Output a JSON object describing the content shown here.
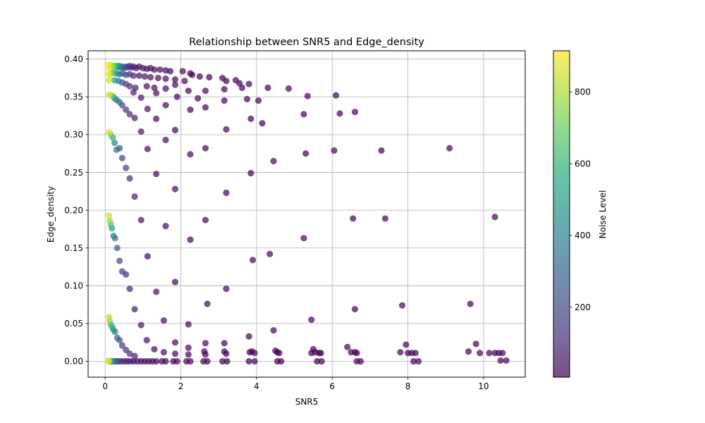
{
  "chart_data": {
    "type": "scatter",
    "title": "Relationship between SNR5 and Edge_density",
    "xlabel": "SNR5",
    "ylabel": "Edge_density",
    "xlim": [
      -0.45,
      11.1
    ],
    "ylim": [
      -0.021,
      0.411
    ],
    "xticks": [
      "0",
      "2",
      "4",
      "6",
      "8",
      "10"
    ],
    "yticks": [
      "0.00",
      "0.05",
      "0.10",
      "0.15",
      "0.20",
      "0.25",
      "0.30",
      "0.35",
      "0.40"
    ],
    "grid": true,
    "colorbar": {
      "label": "Noise Level",
      "range": [
        5,
        915
      ],
      "ticks": [
        "200",
        "400",
        "600",
        "800"
      ],
      "colormap": "viridis",
      "alpha": 0.7
    },
    "point_color_by": "Noise Level",
    "points": [
      {
        "x": 0.08,
        "y": 0.393,
        "c": 915
      },
      {
        "x": 0.1,
        "y": 0.388,
        "c": 880
      },
      {
        "x": 0.09,
        "y": 0.38,
        "c": 890
      },
      {
        "x": 0.1,
        "y": 0.372,
        "c": 860
      },
      {
        "x": 0.15,
        "y": 0.392,
        "c": 820
      },
      {
        "x": 0.18,
        "y": 0.39,
        "c": 780
      },
      {
        "x": 0.22,
        "y": 0.391,
        "c": 700
      },
      {
        "x": 0.26,
        "y": 0.39,
        "c": 620
      },
      {
        "x": 0.3,
        "y": 0.391,
        "c": 520
      },
      {
        "x": 0.34,
        "y": 0.389,
        "c": 460
      },
      {
        "x": 0.38,
        "y": 0.391,
        "c": 380
      },
      {
        "x": 0.42,
        "y": 0.389,
        "c": 320
      },
      {
        "x": 0.46,
        "y": 0.39,
        "c": 260
      },
      {
        "x": 0.5,
        "y": 0.388,
        "c": 210
      },
      {
        "x": 0.55,
        "y": 0.39,
        "c": 170
      },
      {
        "x": 0.6,
        "y": 0.389,
        "c": 140
      },
      {
        "x": 0.65,
        "y": 0.391,
        "c": 110
      },
      {
        "x": 0.7,
        "y": 0.389,
        "c": 90
      },
      {
        "x": 0.75,
        "y": 0.39,
        "c": 80
      },
      {
        "x": 0.82,
        "y": 0.388,
        "c": 65
      },
      {
        "x": 0.9,
        "y": 0.39,
        "c": 55
      },
      {
        "x": 1.0,
        "y": 0.388,
        "c": 45
      },
      {
        "x": 1.1,
        "y": 0.387,
        "c": 40
      },
      {
        "x": 1.2,
        "y": 0.388,
        "c": 35
      },
      {
        "x": 1.3,
        "y": 0.386,
        "c": 30
      },
      {
        "x": 1.45,
        "y": 0.386,
        "c": 25
      },
      {
        "x": 1.6,
        "y": 0.385,
        "c": 20
      },
      {
        "x": 1.72,
        "y": 0.384,
        "c": 18
      },
      {
        "x": 2.05,
        "y": 0.384,
        "c": 15
      },
      {
        "x": 2.25,
        "y": 0.381,
        "c": 14
      },
      {
        "x": 2.3,
        "y": 0.379,
        "c": 13
      },
      {
        "x": 2.5,
        "y": 0.377,
        "c": 12
      },
      {
        "x": 2.75,
        "y": 0.376,
        "c": 12
      },
      {
        "x": 3.1,
        "y": 0.375,
        "c": 11
      },
      {
        "x": 3.2,
        "y": 0.371,
        "c": 11
      },
      {
        "x": 3.45,
        "y": 0.372,
        "c": 10
      },
      {
        "x": 3.55,
        "y": 0.368,
        "c": 10
      },
      {
        "x": 3.8,
        "y": 0.367,
        "c": 10
      },
      {
        "x": 3.62,
        "y": 0.362,
        "c": 10
      },
      {
        "x": 4.3,
        "y": 0.362,
        "c": 9
      },
      {
        "x": 4.85,
        "y": 0.361,
        "c": 9
      },
      {
        "x": 0.15,
        "y": 0.38,
        "c": 800
      },
      {
        "x": 0.22,
        "y": 0.382,
        "c": 600
      },
      {
        "x": 0.3,
        "y": 0.381,
        "c": 420
      },
      {
        "x": 0.38,
        "y": 0.38,
        "c": 320
      },
      {
        "x": 0.46,
        "y": 0.381,
        "c": 240
      },
      {
        "x": 0.55,
        "y": 0.379,
        "c": 180
      },
      {
        "x": 0.65,
        "y": 0.38,
        "c": 130
      },
      {
        "x": 0.75,
        "y": 0.378,
        "c": 95
      },
      {
        "x": 0.9,
        "y": 0.378,
        "c": 70
      },
      {
        "x": 1.05,
        "y": 0.377,
        "c": 55
      },
      {
        "x": 1.2,
        "y": 0.376,
        "c": 40
      },
      {
        "x": 1.4,
        "y": 0.375,
        "c": 30
      },
      {
        "x": 1.6,
        "y": 0.374,
        "c": 25
      },
      {
        "x": 1.85,
        "y": 0.373,
        "c": 20
      },
      {
        "x": 2.1,
        "y": 0.371,
        "c": 16
      },
      {
        "x": 0.25,
        "y": 0.372,
        "c": 500
      },
      {
        "x": 0.35,
        "y": 0.371,
        "c": 340
      },
      {
        "x": 0.45,
        "y": 0.369,
        "c": 230
      },
      {
        "x": 0.55,
        "y": 0.367,
        "c": 160
      },
      {
        "x": 0.65,
        "y": 0.364,
        "c": 110
      },
      {
        "x": 0.8,
        "y": 0.362,
        "c": 75
      },
      {
        "x": 1.1,
        "y": 0.364,
        "c": 45
      },
      {
        "x": 1.3,
        "y": 0.362,
        "c": 30
      },
      {
        "x": 1.6,
        "y": 0.361,
        "c": 20
      },
      {
        "x": 1.85,
        "y": 0.366,
        "c": 18
      },
      {
        "x": 2.2,
        "y": 0.358,
        "c": 14
      },
      {
        "x": 2.65,
        "y": 0.358,
        "c": 12
      },
      {
        "x": 3.15,
        "y": 0.36,
        "c": 11
      },
      {
        "x": 0.75,
        "y": 0.356,
        "c": 70
      },
      {
        "x": 0.95,
        "y": 0.349,
        "c": 50
      },
      {
        "x": 1.35,
        "y": 0.355,
        "c": 30
      },
      {
        "x": 1.9,
        "y": 0.35,
        "c": 18
      },
      {
        "x": 2.45,
        "y": 0.348,
        "c": 13
      },
      {
        "x": 3.15,
        "y": 0.345,
        "c": 11
      },
      {
        "x": 3.75,
        "y": 0.347,
        "c": 10
      },
      {
        "x": 4.05,
        "y": 0.345,
        "c": 9
      },
      {
        "x": 5.35,
        "y": 0.351,
        "c": 8
      },
      {
        "x": 6.1,
        "y": 0.352,
        "c": 8
      },
      {
        "x": 0.1,
        "y": 0.353,
        "c": 870
      },
      {
        "x": 0.15,
        "y": 0.352,
        "c": 760
      },
      {
        "x": 0.2,
        "y": 0.351,
        "c": 620
      },
      {
        "x": 0.25,
        "y": 0.348,
        "c": 480
      },
      {
        "x": 0.3,
        "y": 0.346,
        "c": 370
      },
      {
        "x": 0.38,
        "y": 0.343,
        "c": 280
      },
      {
        "x": 0.45,
        "y": 0.339,
        "c": 210
      },
      {
        "x": 0.55,
        "y": 0.333,
        "c": 150
      },
      {
        "x": 0.65,
        "y": 0.327,
        "c": 100
      },
      {
        "x": 0.78,
        "y": 0.322,
        "c": 75
      },
      {
        "x": 1.12,
        "y": 0.334,
        "c": 45
      },
      {
        "x": 1.35,
        "y": 0.321,
        "c": 30
      },
      {
        "x": 1.6,
        "y": 0.339,
        "c": 22
      },
      {
        "x": 2.25,
        "y": 0.333,
        "c": 14
      },
      {
        "x": 2.65,
        "y": 0.336,
        "c": 12
      },
      {
        "x": 3.85,
        "y": 0.321,
        "c": 10
      },
      {
        "x": 4.15,
        "y": 0.315,
        "c": 9
      },
      {
        "x": 5.25,
        "y": 0.327,
        "c": 8
      },
      {
        "x": 6.2,
        "y": 0.328,
        "c": 8
      },
      {
        "x": 6.6,
        "y": 0.33,
        "c": 8
      },
      {
        "x": 0.1,
        "y": 0.303,
        "c": 860
      },
      {
        "x": 0.15,
        "y": 0.3,
        "c": 720
      },
      {
        "x": 0.2,
        "y": 0.296,
        "c": 560
      },
      {
        "x": 0.25,
        "y": 0.289,
        "c": 420
      },
      {
        "x": 0.3,
        "y": 0.28,
        "c": 320
      },
      {
        "x": 0.38,
        "y": 0.282,
        "c": 250
      },
      {
        "x": 0.45,
        "y": 0.269,
        "c": 190
      },
      {
        "x": 0.55,
        "y": 0.256,
        "c": 140
      },
      {
        "x": 0.65,
        "y": 0.242,
        "c": 100
      },
      {
        "x": 0.78,
        "y": 0.218,
        "c": 70
      },
      {
        "x": 0.95,
        "y": 0.304,
        "c": 50
      },
      {
        "x": 1.12,
        "y": 0.281,
        "c": 40
      },
      {
        "x": 1.35,
        "y": 0.248,
        "c": 30
      },
      {
        "x": 1.6,
        "y": 0.293,
        "c": 22
      },
      {
        "x": 1.85,
        "y": 0.306,
        "c": 18
      },
      {
        "x": 1.85,
        "y": 0.228,
        "c": 18
      },
      {
        "x": 2.25,
        "y": 0.274,
        "c": 14
      },
      {
        "x": 2.65,
        "y": 0.282,
        "c": 12
      },
      {
        "x": 3.2,
        "y": 0.307,
        "c": 11
      },
      {
        "x": 3.2,
        "y": 0.223,
        "c": 11
      },
      {
        "x": 3.85,
        "y": 0.249,
        "c": 10
      },
      {
        "x": 4.45,
        "y": 0.265,
        "c": 9
      },
      {
        "x": 5.3,
        "y": 0.275,
        "c": 8
      },
      {
        "x": 6.05,
        "y": 0.279,
        "c": 8
      },
      {
        "x": 7.3,
        "y": 0.279,
        "c": 7
      },
      {
        "x": 9.1,
        "y": 0.282,
        "c": 7
      },
      {
        "x": 0.1,
        "y": 0.193,
        "c": 850
      },
      {
        "x": 0.12,
        "y": 0.186,
        "c": 760
      },
      {
        "x": 0.15,
        "y": 0.181,
        "c": 640
      },
      {
        "x": 0.18,
        "y": 0.176,
        "c": 520
      },
      {
        "x": 0.22,
        "y": 0.166,
        "c": 400
      },
      {
        "x": 0.26,
        "y": 0.163,
        "c": 320
      },
      {
        "x": 0.32,
        "y": 0.15,
        "c": 260
      },
      {
        "x": 0.38,
        "y": 0.133,
        "c": 200
      },
      {
        "x": 0.45,
        "y": 0.119,
        "c": 160
      },
      {
        "x": 0.55,
        "y": 0.115,
        "c": 120
      },
      {
        "x": 0.65,
        "y": 0.096,
        "c": 90
      },
      {
        "x": 0.78,
        "y": 0.069,
        "c": 70
      },
      {
        "x": 0.95,
        "y": 0.187,
        "c": 50
      },
      {
        "x": 1.12,
        "y": 0.139,
        "c": 40
      },
      {
        "x": 1.35,
        "y": 0.092,
        "c": 30
      },
      {
        "x": 1.6,
        "y": 0.179,
        "c": 22
      },
      {
        "x": 1.85,
        "y": 0.105,
        "c": 18
      },
      {
        "x": 2.25,
        "y": 0.161,
        "c": 14
      },
      {
        "x": 2.65,
        "y": 0.187,
        "c": 12
      },
      {
        "x": 2.7,
        "y": 0.076,
        "c": 12
      },
      {
        "x": 3.2,
        "y": 0.096,
        "c": 11
      },
      {
        "x": 3.9,
        "y": 0.134,
        "c": 10
      },
      {
        "x": 4.35,
        "y": 0.142,
        "c": 9
      },
      {
        "x": 5.25,
        "y": 0.163,
        "c": 8
      },
      {
        "x": 6.55,
        "y": 0.189,
        "c": 8
      },
      {
        "x": 6.6,
        "y": 0.069,
        "c": 8
      },
      {
        "x": 7.4,
        "y": 0.189,
        "c": 7
      },
      {
        "x": 7.85,
        "y": 0.074,
        "c": 7
      },
      {
        "x": 9.65,
        "y": 0.076,
        "c": 6
      },
      {
        "x": 10.3,
        "y": 0.191,
        "c": 6
      },
      {
        "x": 0.1,
        "y": 0.059,
        "c": 830
      },
      {
        "x": 0.12,
        "y": 0.054,
        "c": 760
      },
      {
        "x": 0.15,
        "y": 0.049,
        "c": 640
      },
      {
        "x": 0.18,
        "y": 0.046,
        "c": 540
      },
      {
        "x": 0.22,
        "y": 0.042,
        "c": 440
      },
      {
        "x": 0.26,
        "y": 0.039,
        "c": 350
      },
      {
        "x": 0.32,
        "y": 0.031,
        "c": 280
      },
      {
        "x": 0.38,
        "y": 0.028,
        "c": 220
      },
      {
        "x": 0.45,
        "y": 0.021,
        "c": 170
      },
      {
        "x": 0.55,
        "y": 0.015,
        "c": 130
      },
      {
        "x": 0.65,
        "y": 0.01,
        "c": 100
      },
      {
        "x": 0.78,
        "y": 0.007,
        "c": 75
      },
      {
        "x": 0.95,
        "y": 0.048,
        "c": 50
      },
      {
        "x": 1.1,
        "y": 0.028,
        "c": 40
      },
      {
        "x": 1.3,
        "y": 0.016,
        "c": 30
      },
      {
        "x": 1.55,
        "y": 0.054,
        "c": 22
      },
      {
        "x": 1.55,
        "y": 0.012,
        "c": 22
      },
      {
        "x": 1.85,
        "y": 0.025,
        "c": 18
      },
      {
        "x": 1.85,
        "y": 0.01,
        "c": 18
      },
      {
        "x": 2.2,
        "y": 0.049,
        "c": 14
      },
      {
        "x": 2.2,
        "y": 0.018,
        "c": 14
      },
      {
        "x": 2.2,
        "y": 0.009,
        "c": 14
      },
      {
        "x": 2.65,
        "y": 0.024,
        "c": 12
      },
      {
        "x": 2.62,
        "y": 0.013,
        "c": 12
      },
      {
        "x": 2.65,
        "y": 0.009,
        "c": 12
      },
      {
        "x": 3.15,
        "y": 0.024,
        "c": 11
      },
      {
        "x": 3.15,
        "y": 0.013,
        "c": 11
      },
      {
        "x": 3.2,
        "y": 0.01,
        "c": 11
      },
      {
        "x": 3.8,
        "y": 0.033,
        "c": 10
      },
      {
        "x": 3.82,
        "y": 0.012,
        "c": 10
      },
      {
        "x": 3.88,
        "y": 0.013,
        "c": 10
      },
      {
        "x": 3.95,
        "y": 0.011,
        "c": 10
      },
      {
        "x": 4.45,
        "y": 0.041,
        "c": 9
      },
      {
        "x": 4.5,
        "y": 0.014,
        "c": 9
      },
      {
        "x": 4.55,
        "y": 0.012,
        "c": 9
      },
      {
        "x": 4.6,
        "y": 0.011,
        "c": 9
      },
      {
        "x": 5.45,
        "y": 0.055,
        "c": 8
      },
      {
        "x": 5.45,
        "y": 0.011,
        "c": 8
      },
      {
        "x": 5.5,
        "y": 0.016,
        "c": 8
      },
      {
        "x": 5.55,
        "y": 0.012,
        "c": 8
      },
      {
        "x": 5.65,
        "y": 0.011,
        "c": 8
      },
      {
        "x": 5.7,
        "y": 0.011,
        "c": 8
      },
      {
        "x": 6.4,
        "y": 0.019,
        "c": 8
      },
      {
        "x": 6.5,
        "y": 0.012,
        "c": 8
      },
      {
        "x": 6.6,
        "y": 0.012,
        "c": 8
      },
      {
        "x": 6.65,
        "y": 0.011,
        "c": 8
      },
      {
        "x": 7.8,
        "y": 0.012,
        "c": 7
      },
      {
        "x": 7.95,
        "y": 0.022,
        "c": 7
      },
      {
        "x": 8.0,
        "y": 0.011,
        "c": 7
      },
      {
        "x": 8.1,
        "y": 0.011,
        "c": 7
      },
      {
        "x": 8.2,
        "y": 0.011,
        "c": 7
      },
      {
        "x": 9.6,
        "y": 0.013,
        "c": 6
      },
      {
        "x": 9.8,
        "y": 0.023,
        "c": 6
      },
      {
        "x": 9.9,
        "y": 0.011,
        "c": 6
      },
      {
        "x": 10.15,
        "y": 0.011,
        "c": 6
      },
      {
        "x": 10.3,
        "y": 0.011,
        "c": 6
      },
      {
        "x": 10.4,
        "y": 0.011,
        "c": 6
      },
      {
        "x": 10.5,
        "y": 0.011,
        "c": 6
      },
      {
        "x": 10.45,
        "y": 0.001,
        "c": 6
      },
      {
        "x": 10.6,
        "y": 0.001,
        "c": 6
      },
      {
        "x": 0.08,
        "y": 0.001,
        "c": 900
      },
      {
        "x": 0.1,
        "y": 0.0,
        "c": 780
      },
      {
        "x": 0.13,
        "y": 0.0,
        "c": 640
      },
      {
        "x": 0.16,
        "y": 0.0,
        "c": 500
      },
      {
        "x": 0.2,
        "y": 0.0,
        "c": 380
      },
      {
        "x": 0.25,
        "y": 0.0,
        "c": 280
      },
      {
        "x": 0.3,
        "y": 0.0,
        "c": 200
      },
      {
        "x": 0.36,
        "y": 0.0,
        "c": 150
      },
      {
        "x": 0.42,
        "y": 0.0,
        "c": 110
      },
      {
        "x": 0.5,
        "y": 0.0,
        "c": 85
      },
      {
        "x": 0.58,
        "y": 0.0,
        "c": 65
      },
      {
        "x": 0.66,
        "y": 0.0,
        "c": 50
      },
      {
        "x": 0.75,
        "y": 0.0,
        "c": 40
      },
      {
        "x": 0.85,
        "y": 0.0,
        "c": 32
      },
      {
        "x": 0.95,
        "y": 0.0,
        "c": 26
      },
      {
        "x": 1.05,
        "y": 0.0,
        "c": 22
      },
      {
        "x": 1.15,
        "y": 0.0,
        "c": 18
      },
      {
        "x": 1.25,
        "y": 0.0,
        "c": 16
      },
      {
        "x": 1.35,
        "y": 0.0,
        "c": 14
      },
      {
        "x": 1.5,
        "y": 0.0,
        "c": 13
      },
      {
        "x": 1.6,
        "y": 0.0,
        "c": 12
      },
      {
        "x": 1.8,
        "y": 0.0,
        "c": 11
      },
      {
        "x": 1.9,
        "y": 0.0,
        "c": 11
      },
      {
        "x": 2.15,
        "y": 0.0,
        "c": 10
      },
      {
        "x": 2.25,
        "y": 0.0,
        "c": 10
      },
      {
        "x": 2.6,
        "y": 0.0,
        "c": 9
      },
      {
        "x": 2.7,
        "y": 0.0,
        "c": 9
      },
      {
        "x": 3.1,
        "y": 0.0,
        "c": 9
      },
      {
        "x": 3.22,
        "y": 0.0,
        "c": 9
      },
      {
        "x": 3.8,
        "y": 0.0,
        "c": 8
      },
      {
        "x": 3.95,
        "y": 0.0,
        "c": 8
      },
      {
        "x": 4.55,
        "y": 0.0,
        "c": 8
      },
      {
        "x": 4.65,
        "y": 0.0,
        "c": 8
      },
      {
        "x": 5.6,
        "y": 0.0,
        "c": 7
      },
      {
        "x": 5.72,
        "y": 0.0,
        "c": 7
      },
      {
        "x": 6.65,
        "y": 0.0,
        "c": 7
      },
      {
        "x": 6.75,
        "y": 0.0,
        "c": 7
      },
      {
        "x": 8.15,
        "y": 0.0,
        "c": 6
      },
      {
        "x": 8.28,
        "y": 0.0,
        "c": 6
      }
    ]
  }
}
